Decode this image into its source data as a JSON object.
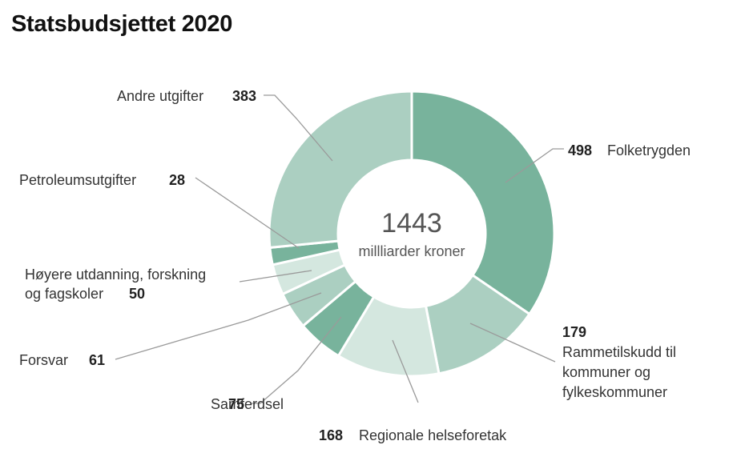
{
  "title": "Statsbudsjettet 2020",
  "chart_data": {
    "type": "pie",
    "title": "Statsbudsjettet 2020",
    "center_value": "1443",
    "center_label": "millliarder kroner",
    "slices": [
      {
        "name": "Folketrygden",
        "value": 498,
        "value_label": "498",
        "label_lines": [
          "Folketrygden"
        ],
        "color": "#78b39c"
      },
      {
        "name": "Rammetilskudd til kommuner og fylkeskommuner",
        "value": 179,
        "value_label": "179",
        "label_lines": [
          "Rammetilskudd til",
          "kommuner og",
          "fylkeskommuner"
        ],
        "color": "#abcfc1"
      },
      {
        "name": "Regionale helseforetak",
        "value": 168,
        "value_label": "168",
        "label_lines": [
          "Regionale helseforetak"
        ],
        "color": "#d4e7df"
      },
      {
        "name": "Samferdsel",
        "value": 75,
        "value_label": "75",
        "label_lines": [
          "Samferdsel"
        ],
        "color": "#78b39c"
      },
      {
        "name": "Forsvar",
        "value": 61,
        "value_label": "61",
        "label_lines": [
          "Forsvar"
        ],
        "color": "#abcfc1"
      },
      {
        "name": "Høyere utdanning, forskning og fagskoler",
        "value": 50,
        "value_label": "50",
        "label_lines": [
          "Høyere utdanning, forskning",
          "og fagskoler"
        ],
        "color": "#d4e7df"
      },
      {
        "name": "Petroleumsutgifter",
        "value": 28,
        "value_label": "28",
        "label_lines": [
          "Petroleumsutgifter"
        ],
        "color": "#78b39c"
      },
      {
        "name": "Andre utgifter",
        "value": 383,
        "value_label": "383",
        "label_lines": [
          "Andre utgifter"
        ],
        "color": "#abcfc1"
      }
    ]
  }
}
